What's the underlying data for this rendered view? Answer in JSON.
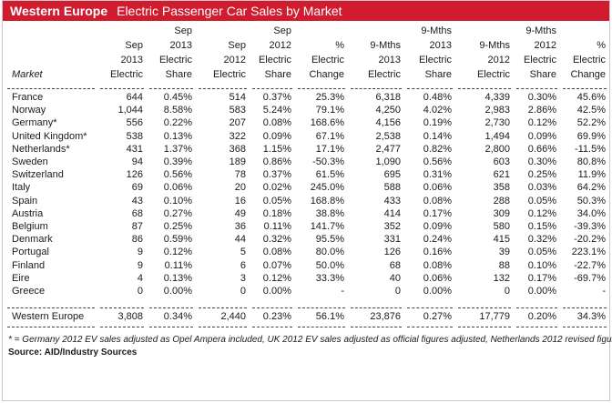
{
  "title": {
    "bold": "Western Europe",
    "rest": "Electric Passenger Car Sales by Market"
  },
  "header": {
    "row1": [
      "",
      "",
      "Sep",
      "",
      "Sep",
      "",
      "",
      "9-Mths",
      "",
      "9-Mths",
      ""
    ],
    "row2": [
      "",
      "Sep",
      "2013",
      "Sep",
      "2012",
      "%",
      "9-Mths",
      "2013",
      "9-Mths",
      "2012",
      "%"
    ],
    "row3": [
      "",
      "2013",
      "Electric",
      "2012",
      "Electric",
      "Electric",
      "2013",
      "Electric",
      "2012",
      "Electric",
      "Electric"
    ],
    "row4": [
      "Market",
      "Electric",
      "Share",
      "Electric",
      "Share",
      "Change",
      "Electric",
      "Share",
      "Electric",
      "Share",
      "Change"
    ]
  },
  "rows": [
    [
      "France",
      "644",
      "0.45%",
      "514",
      "0.37%",
      "25.3%",
      "6,318",
      "0.48%",
      "4,339",
      "0.30%",
      "45.6%"
    ],
    [
      "Norway",
      "1,044",
      "8.58%",
      "583",
      "5.24%",
      "79.1%",
      "4,250",
      "4.02%",
      "2,983",
      "2.86%",
      "42.5%"
    ],
    [
      "Germany*",
      "556",
      "0.22%",
      "207",
      "0.08%",
      "168.6%",
      "4,156",
      "0.19%",
      "2,730",
      "0.12%",
      "52.2%"
    ],
    [
      "United Kingdom*",
      "538",
      "0.13%",
      "322",
      "0.09%",
      "67.1%",
      "2,538",
      "0.14%",
      "1,494",
      "0.09%",
      "69.9%"
    ],
    [
      "Netherlands*",
      "431",
      "1.37%",
      "368",
      "1.15%",
      "17.1%",
      "2,477",
      "0.82%",
      "2,800",
      "0.66%",
      "-11.5%"
    ],
    [
      "Sweden",
      "94",
      "0.39%",
      "189",
      "0.86%",
      "-50.3%",
      "1,090",
      "0.56%",
      "603",
      "0.30%",
      "80.8%"
    ],
    [
      "Switzerland",
      "126",
      "0.56%",
      "78",
      "0.37%",
      "61.5%",
      "695",
      "0.31%",
      "621",
      "0.25%",
      "11.9%"
    ],
    [
      "Italy",
      "69",
      "0.06%",
      "20",
      "0.02%",
      "245.0%",
      "588",
      "0.06%",
      "358",
      "0.03%",
      "64.2%"
    ],
    [
      "Spain",
      "43",
      "0.10%",
      "16",
      "0.05%",
      "168.8%",
      "433",
      "0.08%",
      "288",
      "0.05%",
      "50.3%"
    ],
    [
      "Austria",
      "68",
      "0.27%",
      "49",
      "0.18%",
      "38.8%",
      "414",
      "0.17%",
      "309",
      "0.12%",
      "34.0%"
    ],
    [
      "Belgium",
      "87",
      "0.25%",
      "36",
      "0.11%",
      "141.7%",
      "352",
      "0.09%",
      "580",
      "0.15%",
      "-39.3%"
    ],
    [
      "Denmark",
      "86",
      "0.59%",
      "44",
      "0.32%",
      "95.5%",
      "331",
      "0.24%",
      "415",
      "0.32%",
      "-20.2%"
    ],
    [
      "Portugal",
      "9",
      "0.12%",
      "5",
      "0.08%",
      "80.0%",
      "126",
      "0.16%",
      "39",
      "0.05%",
      "223.1%"
    ],
    [
      "Finland",
      "9",
      "0.11%",
      "6",
      "0.07%",
      "50.0%",
      "68",
      "0.08%",
      "88",
      "0.10%",
      "-22.7%"
    ],
    [
      "Eire",
      "4",
      "0.13%",
      "3",
      "0.12%",
      "33.3%",
      "40",
      "0.06%",
      "132",
      "0.17%",
      "-69.7%"
    ],
    [
      "Greece",
      "0",
      "0.00%",
      "0",
      "0.00%",
      "-",
      "0",
      "0.00%",
      "0",
      "0.00%",
      "-"
    ]
  ],
  "total": [
    "Western Europe",
    "3,808",
    "0.34%",
    "2,440",
    "0.23%",
    "56.1%",
    "23,876",
    "0.27%",
    "17,779",
    "0.20%",
    "34.3%"
  ],
  "footnote": "* = Germany 2012 EV sales adjusted as Opel Ampera included, UK 2012 EV sales adjusted as official figures adjusted, Netherlands 2012 revised figure",
  "source": "Source: AID/Industry Sources",
  "colors": {
    "title_bar": "#d01c2e"
  }
}
